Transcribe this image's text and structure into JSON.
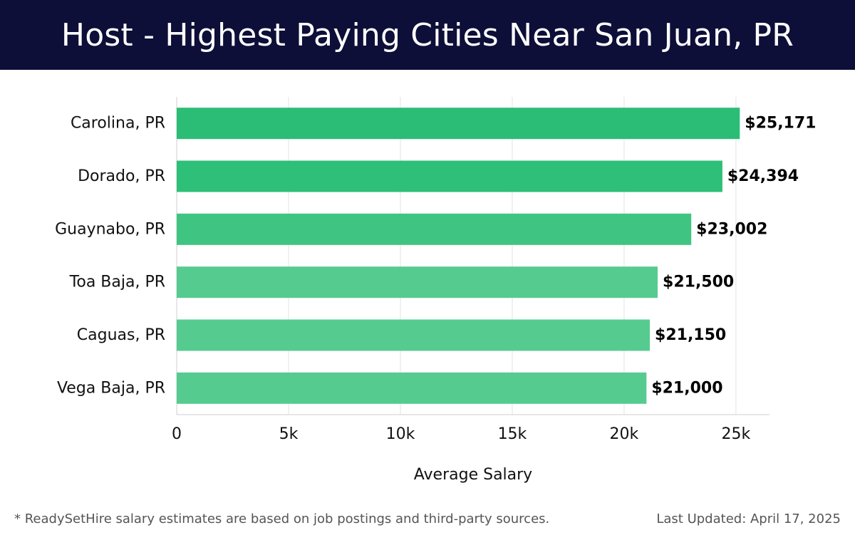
{
  "header": {
    "title": "Host - Highest Paying Cities Near San Juan, PR",
    "background": "#0d0f38"
  },
  "chart_data": {
    "type": "bar",
    "orientation": "horizontal",
    "title": "Host - Highest Paying Cities Near San Juan, PR",
    "xlabel": "Average Salary",
    "ylabel": "",
    "categories": [
      "Carolina, PR",
      "Dorado, PR",
      "Guaynabo, PR",
      "Toa Baja, PR",
      "Caguas, PR",
      "Vega Baja, PR"
    ],
    "values": [
      25171,
      24394,
      23002,
      21500,
      21150,
      21000
    ],
    "value_labels": [
      "$25,171",
      "$24,394",
      "$23,002",
      "$21,500",
      "$21,150",
      "$21,000"
    ],
    "bar_colors": [
      "#2bbd76",
      "#2ebf78",
      "#3fc581",
      "#56cb90",
      "#56cb90",
      "#56cb90"
    ],
    "xlim": [
      0,
      26500
    ],
    "xticks": [
      0,
      5000,
      10000,
      15000,
      20000,
      25000
    ],
    "xtick_labels": [
      "0",
      "5k",
      "10k",
      "15k",
      "20k",
      "25k"
    ],
    "grid": true
  },
  "footer": {
    "note": "* ReadySetHire salary estimates are based on job postings and third-party sources.",
    "updated": "Last Updated: April 17, 2025"
  }
}
